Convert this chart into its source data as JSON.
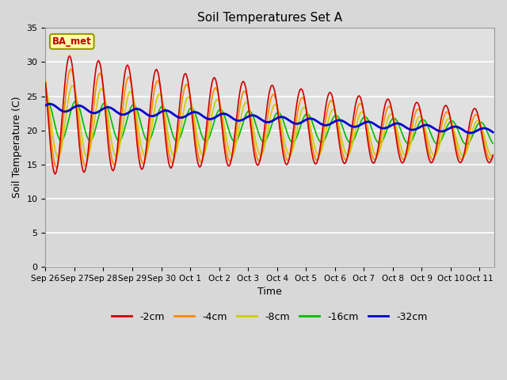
{
  "title": "Soil Temperatures Set A",
  "xlabel": "Time",
  "ylabel": "Soil Temperature (C)",
  "ylim": [
    0,
    35
  ],
  "annotation_text": "BA_met",
  "tick_labels": [
    "Sep 26",
    "Sep 27",
    "Sep 28",
    "Sep 29",
    "Sep 30",
    "Oct 1",
    "Oct 2",
    "Oct 3",
    "Oct 4",
    "Oct 5",
    "Oct 6",
    "Oct 7",
    "Oct 8",
    "Oct 9",
    "Oct 10",
    "Oct 11"
  ],
  "legend_labels": [
    "-2cm",
    "-4cm",
    "-8cm",
    "-16cm",
    "-32cm"
  ],
  "legend_colors": [
    "#cc0000",
    "#ff8800",
    "#cccc00",
    "#00bb00",
    "#0000cc"
  ],
  "bg_color": "#d8d8d8",
  "plot_bg_lower": "#d8d8d8",
  "plot_bg_upper": "#e8e8e8",
  "grid_color": "#ffffff"
}
